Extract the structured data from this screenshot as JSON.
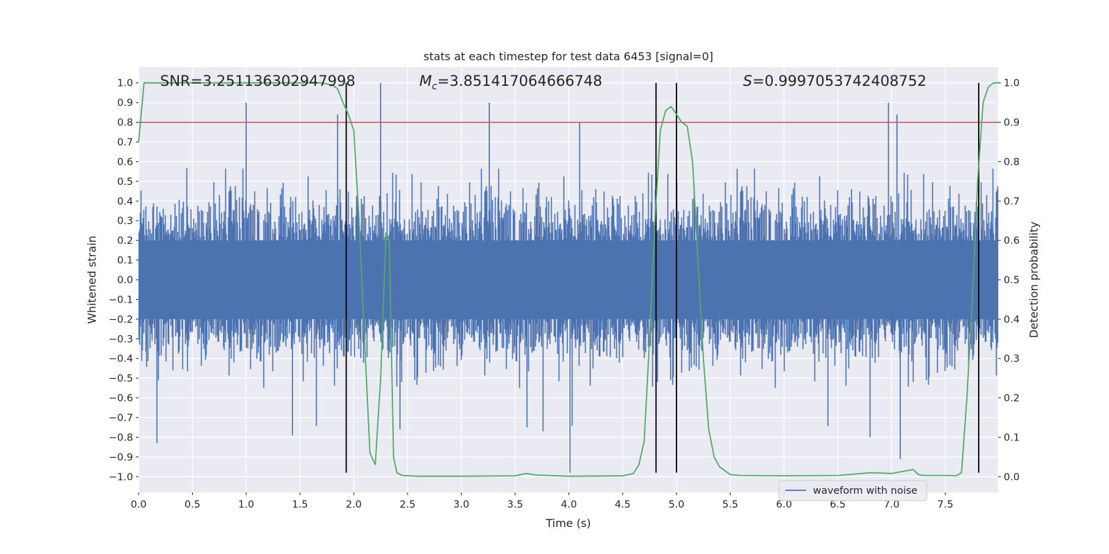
{
  "chart_data": {
    "type": "line",
    "title": "stats at each timestep for test data 6453 [signal=0]",
    "xlabel": "Time (s)",
    "ylabel_left": "Whitened strain",
    "ylabel_right": "Detection probability",
    "xlim": [
      0.0,
      7.99
    ],
    "ylim_left": [
      -1.08,
      1.08
    ],
    "ylim_right": [
      -0.04,
      1.04
    ],
    "x_ticks": [
      0.0,
      0.5,
      1.0,
      1.5,
      2.0,
      2.5,
      3.0,
      3.5,
      4.0,
      4.5,
      5.0,
      5.5,
      6.0,
      6.5,
      7.0,
      7.5
    ],
    "x_tick_labels": [
      "0.0",
      "0.5",
      "1.0",
      "1.5",
      "2.0",
      "2.5",
      "3.0",
      "3.5",
      "4.0",
      "4.5",
      "5.0",
      "5.5",
      "6.0",
      "6.5",
      "7.0",
      "7.5"
    ],
    "y_left_ticks": [
      1.0,
      0.9,
      0.8,
      0.7,
      0.6,
      0.5,
      0.4,
      0.3,
      0.2,
      0.1,
      0.0,
      -0.1,
      -0.2,
      -0.3,
      -0.4,
      -0.5,
      -0.6,
      -0.7,
      -0.8,
      -0.9,
      -1.0
    ],
    "y_left_tick_labels": [
      "1.0",
      "0.9",
      "0.8",
      "0.7",
      "0.6",
      "0.5",
      "0.4",
      "0.3",
      "0.2",
      "0.1",
      "0.0",
      "−0.1",
      "−0.2",
      "−0.3",
      "−0.4",
      "−0.5",
      "−0.6",
      "−0.7",
      "−0.8",
      "−0.9",
      "−1.0"
    ],
    "y_right_ticks": [
      1.0,
      0.9,
      0.8,
      0.7,
      0.6,
      0.5,
      0.4,
      0.3,
      0.2,
      0.1,
      0.0
    ],
    "y_right_tick_labels": [
      "1.0",
      "0.9",
      "0.8",
      "0.7",
      "0.6",
      "0.5",
      "0.4",
      "0.3",
      "0.2",
      "0.1",
      "0.0"
    ],
    "annotations": {
      "snr": "SNR=3.251136302947998",
      "mc_symbol": "M",
      "mc_sub": "c",
      "mc_value": "=3.851417064666748",
      "s_symbol": "S",
      "s_value": "=0.9997053742408752"
    },
    "series": [
      {
        "name": "waveform with noise",
        "axis": "left",
        "color": "#4c72b0",
        "kind": "noise",
        "sample_rate_hz": 2048,
        "duration_s": 8.0,
        "typical_range": [
          -0.45,
          0.45
        ],
        "peaks": [
          {
            "x": 1.0,
            "y": 0.9
          },
          {
            "x": 2.25,
            "y": 1.0
          },
          {
            "x": 3.26,
            "y": 0.9
          },
          {
            "x": 4.01,
            "y": -0.98
          },
          {
            "x": 6.97,
            "y": 0.9
          },
          {
            "x": 7.08,
            "y": -0.91
          },
          {
            "x": 0.17,
            "y": -0.83
          },
          {
            "x": 1.43,
            "y": -0.79
          },
          {
            "x": 1.85,
            "y": 0.84
          },
          {
            "x": 3.76,
            "y": -0.77
          },
          {
            "x": 4.1,
            "y": 0.8
          },
          {
            "x": 7.05,
            "y": 0.84
          },
          {
            "x": 6.8,
            "y": -0.8
          },
          {
            "x": 3.61,
            "y": -0.75
          },
          {
            "x": 2.43,
            "y": -0.76
          }
        ]
      },
      {
        "name": "",
        "axis": "right",
        "color": "#55a868",
        "x": [
          0.0,
          0.05,
          0.1,
          0.2,
          0.5,
          1.0,
          1.5,
          1.7,
          1.8,
          1.85,
          1.9,
          1.95,
          2.0,
          2.05,
          2.1,
          2.15,
          2.2,
          2.25,
          2.3,
          2.33,
          2.37,
          2.4,
          2.45,
          2.6,
          3.0,
          3.5,
          3.6,
          3.7,
          4.0,
          4.5,
          4.6,
          4.65,
          4.7,
          4.75,
          4.8,
          4.85,
          4.9,
          4.95,
          5.0,
          5.05,
          5.1,
          5.15,
          5.2,
          5.25,
          5.3,
          5.35,
          5.4,
          5.5,
          5.6,
          6.0,
          6.5,
          6.8,
          7.0,
          7.1,
          7.2,
          7.25,
          7.3,
          7.5,
          7.6,
          7.65,
          7.7,
          7.75,
          7.8,
          7.85,
          7.9,
          7.95,
          7.99
        ],
        "y": [
          0.85,
          1.0,
          1.0,
          1.0,
          1.0,
          1.0,
          1.0,
          1.0,
          0.995,
          0.985,
          0.95,
          0.92,
          0.88,
          0.65,
          0.35,
          0.06,
          0.03,
          0.25,
          0.62,
          0.6,
          0.05,
          0.01,
          0.003,
          0.001,
          0.001,
          0.002,
          0.008,
          0.004,
          0.001,
          0.002,
          0.008,
          0.03,
          0.09,
          0.35,
          0.65,
          0.88,
          0.93,
          0.94,
          0.92,
          0.9,
          0.89,
          0.8,
          0.55,
          0.3,
          0.12,
          0.05,
          0.025,
          0.005,
          0.003,
          0.002,
          0.003,
          0.01,
          0.008,
          0.013,
          0.018,
          0.005,
          0.003,
          0.003,
          0.002,
          0.01,
          0.2,
          0.45,
          0.75,
          0.95,
          0.99,
          1.0,
          1.0
        ]
      },
      {
        "name": "",
        "axis": "left",
        "color": "#c44e52",
        "kind": "hline",
        "y": 0.8
      }
    ],
    "vlines": {
      "color": "#000000",
      "x": [
        1.93,
        4.81,
        5.0,
        7.81
      ],
      "ymin": -0.98,
      "ymax": 1.0
    },
    "legend": {
      "placement": "lower-right",
      "entries": [
        {
          "label": "waveform with noise",
          "color": "#4c72b0"
        }
      ]
    },
    "grid": true
  }
}
